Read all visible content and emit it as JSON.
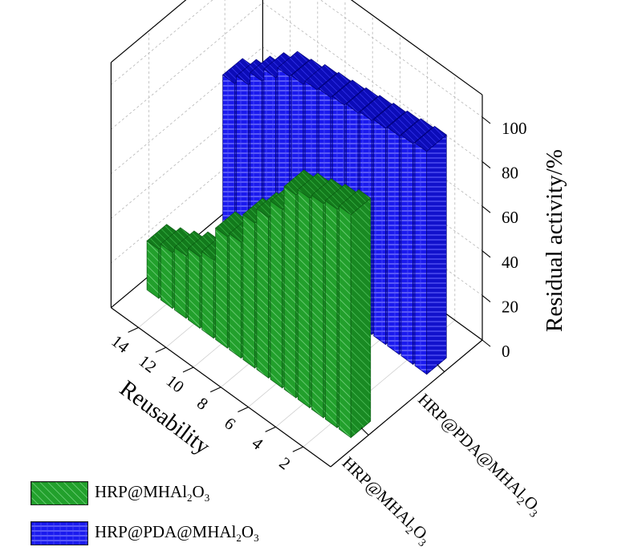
{
  "chart_data": {
    "type": "bar",
    "categories": [
      "1",
      "2",
      "3",
      "4",
      "5",
      "6",
      "7",
      "8",
      "9",
      "10",
      "11",
      "12",
      "13",
      "14",
      "15"
    ],
    "series": [
      {
        "name": "HRP@MHAl2O3",
        "label_parts": [
          "HRP@MHAl",
          "2",
          "O",
          "3"
        ],
        "values": [
          100,
          98,
          96,
          94,
          91,
          80,
          72,
          65,
          52,
          50,
          35,
          32,
          28,
          25,
          22
        ],
        "color": "#22a02c",
        "edge": "#0d5c14",
        "pattern": "diagonal-hatch"
      },
      {
        "name": "HRP@PDA@MHAl2O3",
        "label_parts": [
          "HRP@PDA@MHAl",
          "2",
          "O",
          "3"
        ],
        "values": [
          100,
          99,
          98,
          97,
          96,
          95,
          94,
          93,
          92,
          90,
          89,
          84,
          78,
          72,
          68
        ],
        "color": "#1a1aee",
        "edge": "#00007a",
        "pattern": "horizontal-hatch"
      }
    ],
    "xlabel": "Reusability",
    "ylabel": "Residual activity/%",
    "x_ticks": [
      "2",
      "4",
      "6",
      "8",
      "10",
      "12",
      "14"
    ],
    "z_ticks": [
      "0",
      "20",
      "40",
      "60",
      "80",
      "100"
    ],
    "zlim": [
      0,
      110
    ],
    "grid": true,
    "legend_position": "bottom-left"
  }
}
